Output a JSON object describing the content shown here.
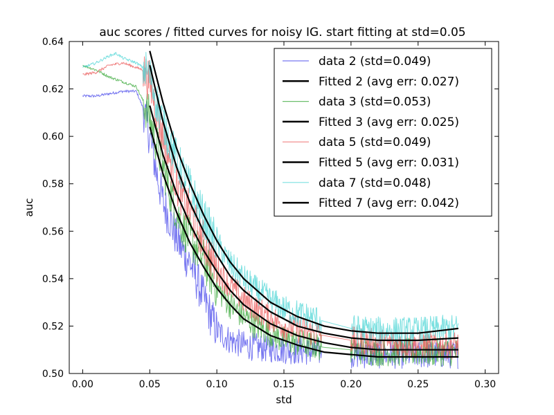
{
  "chart_data": {
    "type": "line",
    "title": "auc scores / fitted curves for noisy IG. start fitting at std=0.05",
    "xlabel": "std",
    "ylabel": "auc",
    "xlim": [
      -0.01,
      0.31
    ],
    "ylim": [
      0.5,
      0.64
    ],
    "xticks": [
      0.0,
      0.05,
      0.1,
      0.15,
      0.2,
      0.25,
      0.3
    ],
    "xtick_labels": [
      "0.00",
      "0.05",
      "0.10",
      "0.15",
      "0.20",
      "0.25",
      "0.30"
    ],
    "yticks": [
      0.5,
      0.52,
      0.54,
      0.56,
      0.58,
      0.6,
      0.62,
      0.64
    ],
    "ytick_labels": [
      "0.50",
      "0.52",
      "0.54",
      "0.56",
      "0.58",
      "0.60",
      "0.62",
      "0.64"
    ],
    "grid": false,
    "legend_position": "top-right",
    "series": [
      {
        "name": "data 2 (std=0.049)",
        "kind": "data",
        "color": "#4a4aeb",
        "x": [
          0.0,
          0.01,
          0.02,
          0.03,
          0.04,
          0.045,
          0.05,
          0.055,
          0.06,
          0.065,
          0.07,
          0.075,
          0.08,
          0.09,
          0.1,
          0.11,
          0.12,
          0.13,
          0.15,
          0.18,
          0.2,
          0.22,
          0.25,
          0.28
        ],
        "y": [
          0.617,
          0.617,
          0.618,
          0.619,
          0.619,
          0.612,
          0.6,
          0.585,
          0.572,
          0.565,
          0.557,
          0.551,
          0.547,
          0.532,
          0.518,
          0.514,
          0.512,
          0.511,
          0.51,
          0.509,
          0.508,
          0.508,
          0.508,
          0.508
        ]
      },
      {
        "name": "Fitted 2 (avg err: 0.027)",
        "kind": "fit",
        "color": "#000000",
        "x": [
          0.05,
          0.06,
          0.07,
          0.08,
          0.09,
          0.1,
          0.11,
          0.12,
          0.14,
          0.16,
          0.18,
          0.2,
          0.22,
          0.25,
          0.28
        ],
        "y": [
          0.604,
          0.584,
          0.568,
          0.555,
          0.545,
          0.536,
          0.529,
          0.523,
          0.516,
          0.512,
          0.509,
          0.508,
          0.507,
          0.507,
          0.507
        ]
      },
      {
        "name": "data 3 (std=0.053)",
        "kind": "data",
        "color": "#3aa83a",
        "x": [
          0.0,
          0.01,
          0.02,
          0.03,
          0.04,
          0.045,
          0.05,
          0.055,
          0.06,
          0.065,
          0.07,
          0.075,
          0.08,
          0.09,
          0.1,
          0.11,
          0.12,
          0.13,
          0.15,
          0.18,
          0.2,
          0.22,
          0.25,
          0.28
        ],
        "y": [
          0.63,
          0.628,
          0.625,
          0.623,
          0.621,
          0.615,
          0.608,
          0.597,
          0.587,
          0.577,
          0.568,
          0.561,
          0.557,
          0.548,
          0.536,
          0.529,
          0.524,
          0.52,
          0.514,
          0.511,
          0.51,
          0.509,
          0.509,
          0.509
        ]
      },
      {
        "name": "Fitted 3 (avg err: 0.025)",
        "kind": "fit",
        "color": "#000000",
        "x": [
          0.05,
          0.06,
          0.07,
          0.08,
          0.09,
          0.1,
          0.11,
          0.12,
          0.14,
          0.16,
          0.18,
          0.2,
          0.22,
          0.25,
          0.28
        ],
        "y": [
          0.613,
          0.592,
          0.576,
          0.563,
          0.552,
          0.543,
          0.535,
          0.529,
          0.521,
          0.516,
          0.513,
          0.511,
          0.51,
          0.51,
          0.51
        ]
      },
      {
        "name": "data 5 (std=0.049)",
        "kind": "data",
        "color": "#eb5a5a",
        "x": [
          0.0,
          0.01,
          0.02,
          0.03,
          0.04,
          0.045,
          0.05,
          0.055,
          0.06,
          0.065,
          0.07,
          0.075,
          0.08,
          0.09,
          0.1,
          0.11,
          0.12,
          0.13,
          0.15,
          0.18,
          0.2,
          0.22,
          0.25,
          0.28
        ],
        "y": [
          0.626,
          0.627,
          0.63,
          0.631,
          0.629,
          0.628,
          0.623,
          0.611,
          0.6,
          0.59,
          0.58,
          0.573,
          0.568,
          0.556,
          0.544,
          0.537,
          0.531,
          0.527,
          0.52,
          0.516,
          0.514,
          0.513,
          0.512,
          0.512
        ]
      },
      {
        "name": "Fitted 5 (avg err: 0.031)",
        "kind": "fit",
        "color": "#000000",
        "x": [
          0.05,
          0.06,
          0.07,
          0.08,
          0.09,
          0.1,
          0.11,
          0.12,
          0.14,
          0.16,
          0.18,
          0.2,
          0.22,
          0.25,
          0.28
        ],
        "y": [
          0.63,
          0.606,
          0.587,
          0.572,
          0.56,
          0.55,
          0.541,
          0.535,
          0.526,
          0.52,
          0.517,
          0.515,
          0.514,
          0.514,
          0.515
        ]
      },
      {
        "name": "data 7 (std=0.048)",
        "kind": "data",
        "color": "#4fd6d6",
        "x": [
          0.0,
          0.01,
          0.02,
          0.025,
          0.03,
          0.04,
          0.045,
          0.05,
          0.055,
          0.06,
          0.065,
          0.07,
          0.075,
          0.08,
          0.09,
          0.1,
          0.11,
          0.12,
          0.13,
          0.15,
          0.18,
          0.2,
          0.22,
          0.25,
          0.28
        ],
        "y": [
          0.629,
          0.631,
          0.634,
          0.635,
          0.633,
          0.631,
          0.629,
          0.626,
          0.615,
          0.606,
          0.598,
          0.59,
          0.584,
          0.578,
          0.566,
          0.555,
          0.546,
          0.54,
          0.535,
          0.527,
          0.522,
          0.519,
          0.518,
          0.518,
          0.519
        ]
      },
      {
        "name": "Fitted 7 (avg err: 0.042)",
        "kind": "fit",
        "color": "#000000",
        "x": [
          0.05,
          0.06,
          0.07,
          0.08,
          0.09,
          0.1,
          0.11,
          0.12,
          0.14,
          0.16,
          0.18,
          0.2,
          0.22,
          0.25,
          0.28
        ],
        "y": [
          0.636,
          0.614,
          0.595,
          0.58,
          0.567,
          0.556,
          0.547,
          0.54,
          0.53,
          0.524,
          0.52,
          0.518,
          0.517,
          0.517,
          0.519
        ]
      }
    ]
  }
}
